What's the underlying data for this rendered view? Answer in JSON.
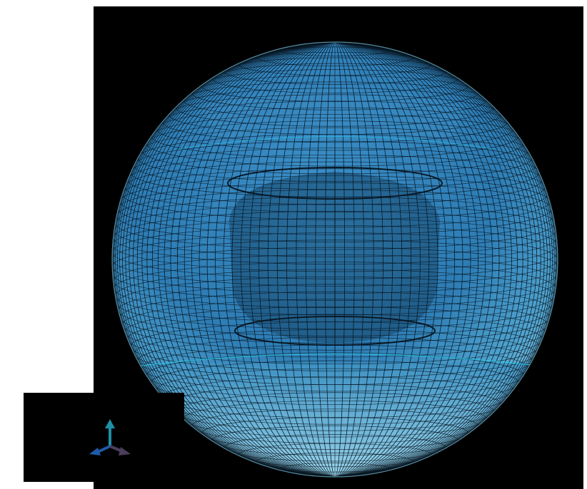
{
  "scene": {
    "view": "3d-mesh-viewport",
    "background": "#000000",
    "model": {
      "shape": "sphere",
      "render_mode": "wireframe-shaded",
      "features": [
        "outer-spherical-shell",
        "inner-cylindrical-cavity",
        "lower-band"
      ]
    },
    "colors": {
      "mesh_top": "#2f7fb8",
      "mesh_mid": "#3c8fc4",
      "mesh_bottom": "#9ad6e8",
      "mesh_lines": "#06121c",
      "highlight_lines": "#29c9e6"
    }
  },
  "triad": {
    "visible": true,
    "axes": [
      {
        "icon": "axis-up-arrow-icon",
        "color": "#1e8fa6"
      },
      {
        "icon": "axis-left-arrow-icon",
        "color": "#1e5aa8"
      },
      {
        "icon": "axis-right-arrow-icon",
        "color": "#4a3e5a"
      }
    ]
  }
}
